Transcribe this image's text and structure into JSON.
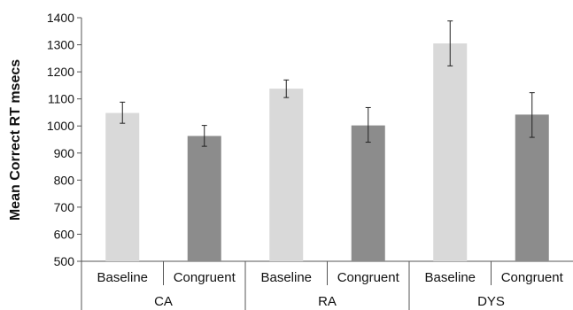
{
  "chart_data": {
    "type": "bar",
    "ylabel": "Mean Correct RT msecs",
    "xlabel": "",
    "ylim": [
      500,
      1400
    ],
    "y_ticks": [
      500,
      600,
      700,
      800,
      900,
      1000,
      1100,
      1200,
      1300,
      1400
    ],
    "groups": [
      "CA",
      "RA",
      "DYS"
    ],
    "categories": [
      "Baseline",
      "Congruent",
      "Baseline",
      "Congruent",
      "Baseline",
      "Congruent"
    ],
    "values": [
      1048,
      963,
      1138,
      1002,
      1305,
      1042
    ],
    "error_low": [
      1010,
      925,
      1105,
      940,
      1222,
      958
    ],
    "error_high": [
      1088,
      1002,
      1170,
      1068,
      1388,
      1123
    ],
    "bar_colors": [
      "#d9d9d9",
      "#8c8c8c",
      "#d9d9d9",
      "#8c8c8c",
      "#d9d9d9",
      "#8c8c8c"
    ],
    "grid": false,
    "legend": "none"
  }
}
